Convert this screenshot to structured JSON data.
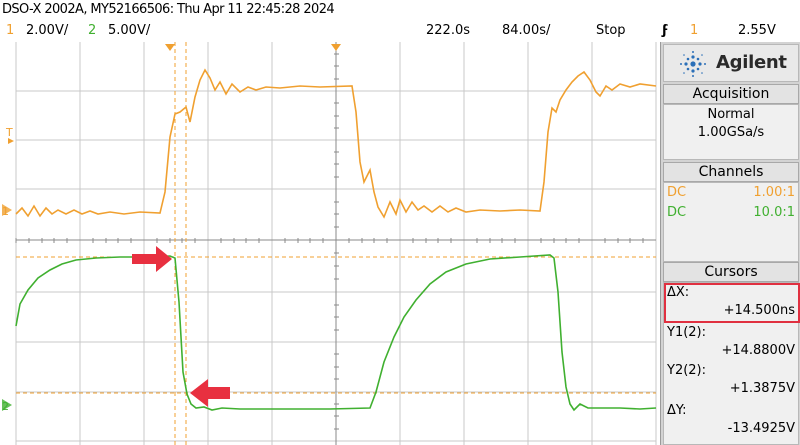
{
  "title": "DSO-X 2002A, MY52166506: Thu Apr 11 22:45:28 2024",
  "status": {
    "ch1_num": "1",
    "ch1_scale": "2.00V/",
    "ch2_num": "2",
    "ch2_scale": "5.00V/",
    "time_offset": "222.0s",
    "time_scale": "84.00s/",
    "run_state": "Stop",
    "trigger_icon": "trigger-edge-icon",
    "trigger_channel": "1",
    "trigger_level": "2.55V"
  },
  "screen": {
    "ch1_marker": "1",
    "ch2_marker": "2",
    "trigger_marker": "T"
  },
  "panel": {
    "brand": "Agilent",
    "acquisition": {
      "header": "Acquisition",
      "mode": "Normal",
      "rate": "1.00GSa/s"
    },
    "channels": {
      "header": "Channels",
      "rows": [
        {
          "coupling": "DC",
          "probe": "1.00:1"
        },
        {
          "coupling": "DC",
          "probe": "10.0:1"
        }
      ]
    },
    "cursors": {
      "header": "Cursors",
      "dx_label": "ΔX:",
      "dx_value": "+14.500ns",
      "y1_label": "Y1(2):",
      "y1_value": "+14.8800V",
      "y2_label": "Y2(2):",
      "y2_value": "+1.3875V",
      "dy_label": "ΔY:",
      "dy_value": "-13.4925V"
    }
  },
  "colors": {
    "ch1": "#f0a030",
    "ch2": "#40b030",
    "grid": "#cccccc",
    "cursor_box": "#e03040",
    "arrow": "#e83040"
  }
}
